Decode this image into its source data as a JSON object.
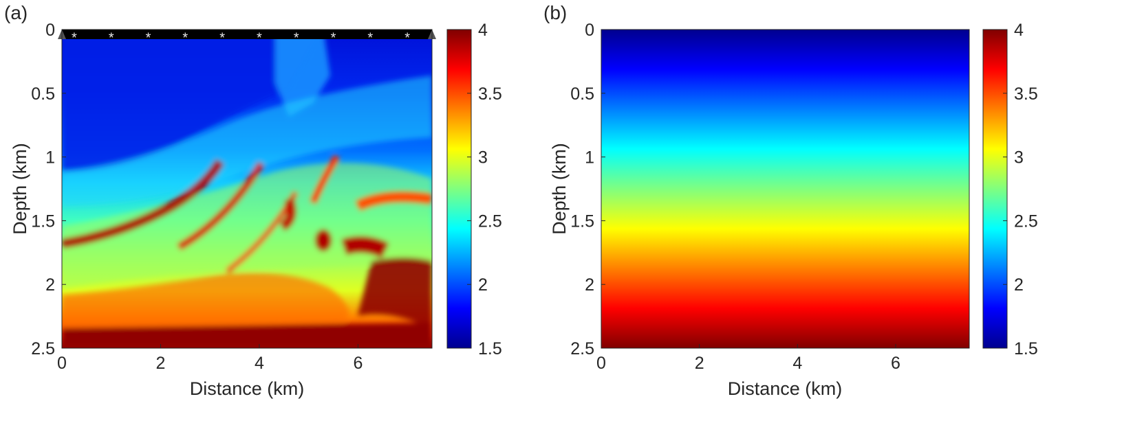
{
  "chart_data": [
    {
      "type": "heatmap",
      "panel_label": "(a)",
      "xlabel": "Distance (km)",
      "ylabel": "Depth (km)",
      "xlim": [
        0,
        7.5
      ],
      "ylim": [
        0,
        2.5
      ],
      "y_reversed": true,
      "xticks": [
        0,
        2,
        4,
        6
      ],
      "yticks": [
        0,
        0.5,
        1,
        1.5,
        2,
        2.5
      ],
      "colorbar": {
        "range": [
          1.5,
          4
        ],
        "ticks": [
          1.5,
          2,
          2.5,
          3,
          3.5,
          4
        ],
        "colormap": "jet"
      },
      "sources": {
        "marker": "*",
        "depth": 0.05,
        "x": [
          0.25,
          1.0,
          1.75,
          2.5,
          3.25,
          4.0,
          4.75,
          5.5,
          6.25,
          7.0
        ]
      },
      "description_values": "Marmousi-like velocity model: ~1.5-1.8 km/s at shallow depth increasing to ~4 km/s at 2.5 km; dipping high-velocity layers in center"
    },
    {
      "type": "heatmap",
      "panel_label": "(b)",
      "xlabel": "Distance (km)",
      "ylabel": "Depth (km)",
      "xlim": [
        0,
        7.5
      ],
      "ylim": [
        0,
        2.5
      ],
      "y_reversed": true,
      "xticks": [
        0,
        2,
        4,
        6
      ],
      "yticks": [
        0,
        0.5,
        1,
        1.5,
        2,
        2.5
      ],
      "colorbar": {
        "range": [
          1.5,
          4
        ],
        "ticks": [
          1.5,
          2,
          2.5,
          3,
          3.5,
          4
        ],
        "colormap": "jet"
      },
      "profile": {
        "depth": [
          0,
          2.5
        ],
        "value": [
          1.5,
          4.0
        ]
      }
    }
  ]
}
